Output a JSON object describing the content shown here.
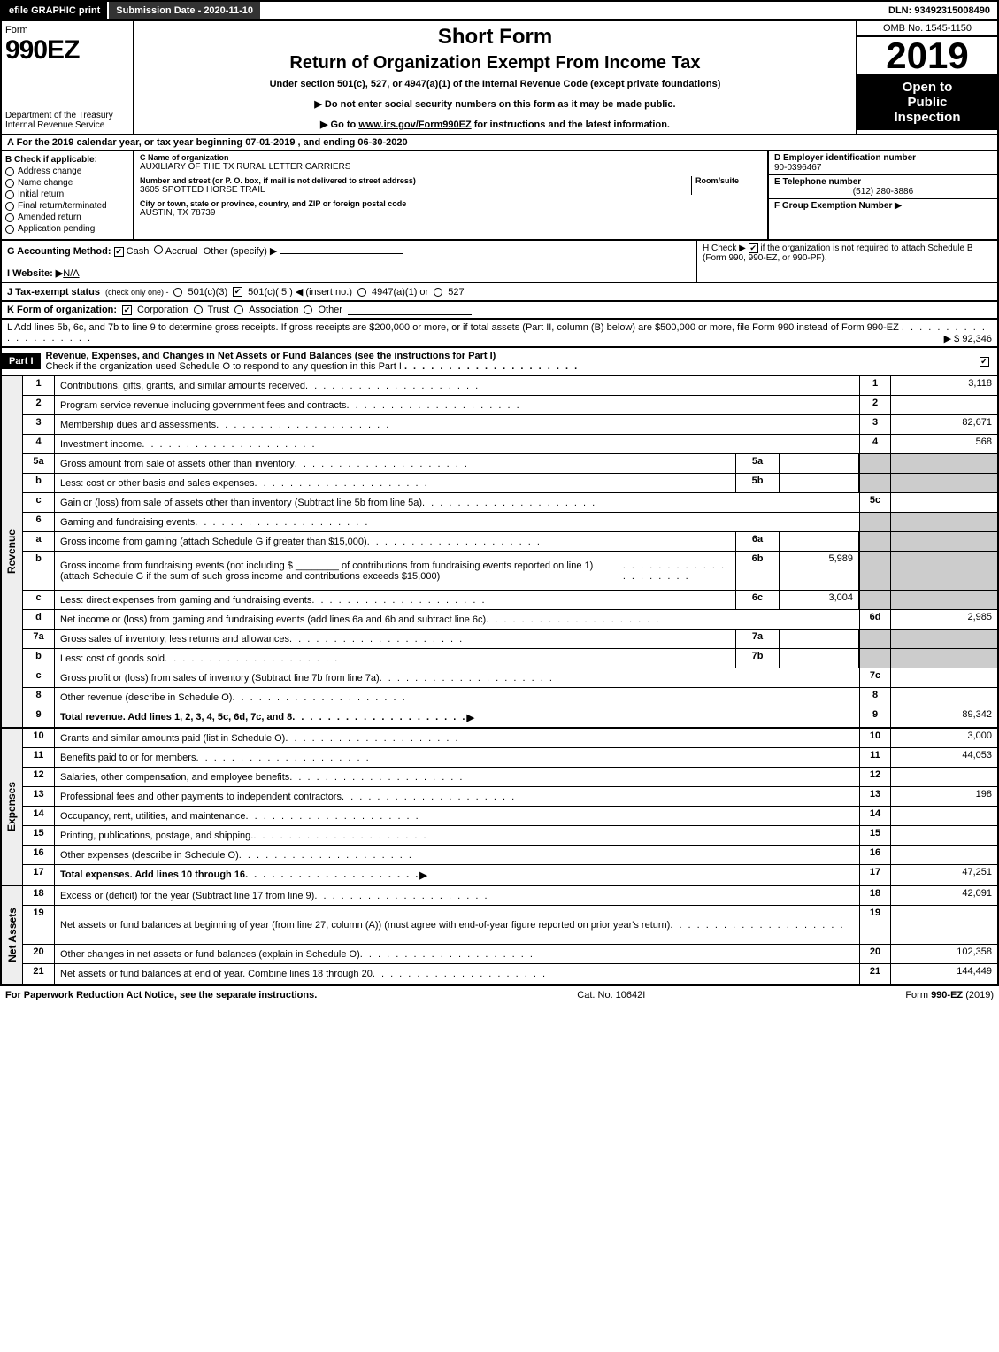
{
  "topbar": {
    "efile": "efile GRAPHIC print",
    "submission": "Submission Date - 2020-11-10",
    "dln": "DLN: 93492315008490"
  },
  "header": {
    "form_word": "Form",
    "form_no": "990EZ",
    "dept1": "Department of the Treasury",
    "dept2": "Internal Revenue Service",
    "short_form": "Short Form",
    "return_title": "Return of Organization Exempt From Income Tax",
    "subtitle": "Under section 501(c), 527, or 4947(a)(1) of the Internal Revenue Code (except private foundations)",
    "arrow1": "▶ Do not enter social security numbers on this form as it may be made public.",
    "arrow2_pre": "▶ Go to ",
    "arrow2_link": "www.irs.gov/Form990EZ",
    "arrow2_post": " for instructions and the latest information.",
    "omb": "OMB No. 1545-1150",
    "year": "2019",
    "open1": "Open to",
    "open2": "Public",
    "open3": "Inspection"
  },
  "row_a": "A  For the 2019 calendar year, or tax year beginning 07-01-2019 , and ending 06-30-2020",
  "col_b": {
    "title": "B  Check if applicable:",
    "items": [
      "Address change",
      "Name change",
      "Initial return",
      "Final return/terminated",
      "Amended return",
      "Application pending"
    ]
  },
  "col_c": {
    "name_label": "C Name of organization",
    "name": "AUXILIARY OF THE TX RURAL LETTER CARRIERS",
    "street_label": "Number and street (or P. O. box, if mail is not delivered to street address)",
    "room_label": "Room/suite",
    "street": "3605 SPOTTED HORSE TRAIL",
    "city_label": "City or town, state or province, country, and ZIP or foreign postal code",
    "city": "AUSTIN, TX  78739"
  },
  "col_def": {
    "d_label": "D Employer identification number",
    "d_val": "90-0396467",
    "e_label": "E Telephone number",
    "e_val": "(512) 280-3886",
    "f_label": "F Group Exemption Number  ▶"
  },
  "g_line": {
    "label": "G Accounting Method:",
    "cash": "Cash",
    "accrual": "Accrual",
    "other": "Other (specify) ▶"
  },
  "h_line": {
    "text": "H  Check ▶ ",
    "rest": " if the organization is not required to attach Schedule B (Form 990, 990-EZ, or 990-PF)."
  },
  "i_line": {
    "label": "I Website: ▶",
    "val": "N/A"
  },
  "j_line": {
    "label": "J Tax-exempt status",
    "small": "(check only one) -",
    "o1": "501(c)(3)",
    "o2": "501(c)( 5 ) ◀ (insert no.)",
    "o3": "4947(a)(1) or",
    "o4": "527"
  },
  "k_line": {
    "label": "K Form of organization:",
    "opts": [
      "Corporation",
      "Trust",
      "Association",
      "Other"
    ]
  },
  "l_line": {
    "text": "L Add lines 5b, 6c, and 7b to line 9 to determine gross receipts. If gross receipts are $200,000 or more, or if total assets (Part II, column (B) below) are $500,000 or more, file Form 990 instead of Form 990-EZ",
    "amt": "▶ $ 92,346"
  },
  "part1": {
    "label": "Part I",
    "title": "Revenue, Expenses, and Changes in Net Assets or Fund Balances (see the instructions for Part I)",
    "check_line": "Check if the organization used Schedule O to respond to any question in this Part I"
  },
  "sections": {
    "revenue": "Revenue",
    "expenses": "Expenses",
    "netassets": "Net Assets"
  },
  "rows": [
    {
      "n": "1",
      "d": "Contributions, gifts, grants, and similar amounts received",
      "ln": "1",
      "amt": "3,118"
    },
    {
      "n": "2",
      "d": "Program service revenue including government fees and contracts",
      "ln": "2",
      "amt": ""
    },
    {
      "n": "3",
      "d": "Membership dues and assessments",
      "ln": "3",
      "amt": "82,671"
    },
    {
      "n": "4",
      "d": "Investment income",
      "ln": "4",
      "amt": "568"
    },
    {
      "n": "5a",
      "d": "Gross amount from sale of assets other than inventory",
      "sub": "5a",
      "subval": "",
      "shade": true
    },
    {
      "n": "b",
      "d": "Less: cost or other basis and sales expenses",
      "sub": "5b",
      "subval": "",
      "shade": true
    },
    {
      "n": "c",
      "d": "Gain or (loss) from sale of assets other than inventory (Subtract line 5b from line 5a)",
      "ln": "5c",
      "amt": ""
    },
    {
      "n": "6",
      "d": "Gaming and fundraising events",
      "shade": true,
      "noln": true
    },
    {
      "n": "a",
      "d": "Gross income from gaming (attach Schedule G if greater than $15,000)",
      "sub": "6a",
      "subval": "",
      "shade": true
    },
    {
      "n": "b",
      "d": "Gross income from fundraising events (not including $ ________ of contributions from fundraising events reported on line 1) (attach Schedule G if the sum of such gross income and contributions exceeds $15,000)",
      "sub": "6b",
      "subval": "5,989",
      "shade": true,
      "tall": true
    },
    {
      "n": "c",
      "d": "Less: direct expenses from gaming and fundraising events",
      "sub": "6c",
      "subval": "3,004",
      "shade": true
    },
    {
      "n": "d",
      "d": "Net income or (loss) from gaming and fundraising events (add lines 6a and 6b and subtract line 6c)",
      "ln": "6d",
      "amt": "2,985"
    },
    {
      "n": "7a",
      "d": "Gross sales of inventory, less returns and allowances",
      "sub": "7a",
      "subval": "",
      "shade": true
    },
    {
      "n": "b",
      "d": "Less: cost of goods sold",
      "sub": "7b",
      "subval": "",
      "shade": true
    },
    {
      "n": "c",
      "d": "Gross profit or (loss) from sales of inventory (Subtract line 7b from line 7a)",
      "ln": "7c",
      "amt": ""
    },
    {
      "n": "8",
      "d": "Other revenue (describe in Schedule O)",
      "ln": "8",
      "amt": ""
    },
    {
      "n": "9",
      "d": "Total revenue. Add lines 1, 2, 3, 4, 5c, 6d, 7c, and 8",
      "ln": "9",
      "amt": "89,342",
      "bold": true,
      "arrow": true
    }
  ],
  "exp_rows": [
    {
      "n": "10",
      "d": "Grants and similar amounts paid (list in Schedule O)",
      "ln": "10",
      "amt": "3,000"
    },
    {
      "n": "11",
      "d": "Benefits paid to or for members",
      "ln": "11",
      "amt": "44,053"
    },
    {
      "n": "12",
      "d": "Salaries, other compensation, and employee benefits",
      "ln": "12",
      "amt": ""
    },
    {
      "n": "13",
      "d": "Professional fees and other payments to independent contractors",
      "ln": "13",
      "amt": "198"
    },
    {
      "n": "14",
      "d": "Occupancy, rent, utilities, and maintenance",
      "ln": "14",
      "amt": ""
    },
    {
      "n": "15",
      "d": "Printing, publications, postage, and shipping.",
      "ln": "15",
      "amt": ""
    },
    {
      "n": "16",
      "d": "Other expenses (describe in Schedule O)",
      "ln": "16",
      "amt": ""
    },
    {
      "n": "17",
      "d": "Total expenses. Add lines 10 through 16",
      "ln": "17",
      "amt": "47,251",
      "bold": true,
      "arrow": true
    }
  ],
  "na_rows": [
    {
      "n": "18",
      "d": "Excess or (deficit) for the year (Subtract line 17 from line 9)",
      "ln": "18",
      "amt": "42,091"
    },
    {
      "n": "19",
      "d": "Net assets or fund balances at beginning of year (from line 27, column (A)) (must agree with end-of-year figure reported on prior year's return)",
      "ln": "19",
      "amt": "",
      "tall": true
    },
    {
      "n": "20",
      "d": "Other changes in net assets or fund balances (explain in Schedule O)",
      "ln": "20",
      "amt": "102,358"
    },
    {
      "n": "21",
      "d": "Net assets or fund balances at end of year. Combine lines 18 through 20",
      "ln": "21",
      "amt": "144,449"
    }
  ],
  "footer": {
    "left": "For Paperwork Reduction Act Notice, see the separate instructions.",
    "mid": "Cat. No. 10642I",
    "right": "Form 990-EZ (2019)"
  },
  "colors": {
    "black": "#000000",
    "shade": "#cccccc",
    "bg": "#ffffff"
  }
}
